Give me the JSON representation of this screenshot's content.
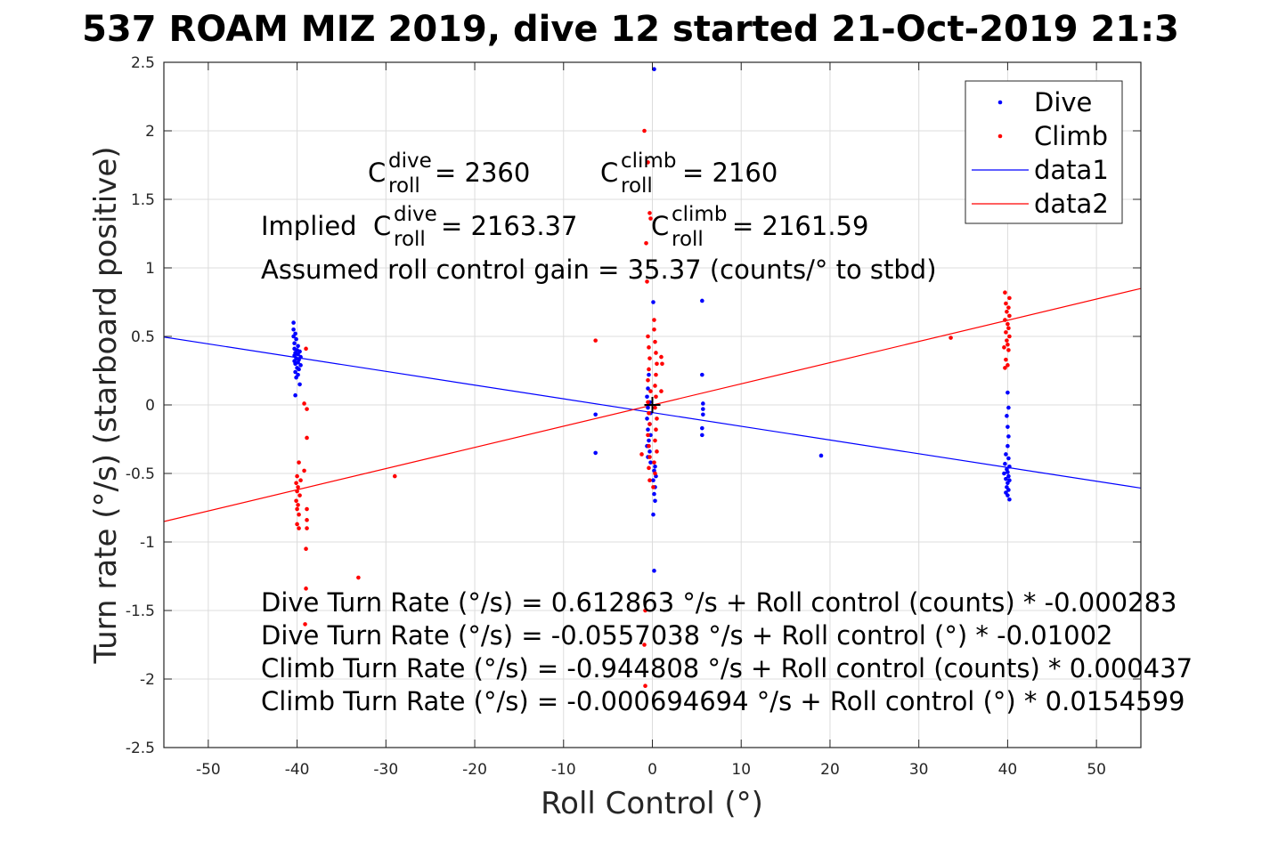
{
  "chart_data": {
    "type": "scatter",
    "title": "537 ROAM MIZ 2019, dive 12 started 21-Oct-2019 21:3",
    "xlabel": "Roll Control (°)",
    "ylabel": "Turn rate (°/s) (starboard positive)",
    "xlim": [
      -55,
      55
    ],
    "ylim": [
      -2.5,
      2.5
    ],
    "xticks": [
      -50,
      -40,
      -30,
      -20,
      -10,
      0,
      10,
      20,
      30,
      40,
      50
    ],
    "yticks": [
      -2.5,
      -2,
      -1.5,
      -1,
      -0.5,
      0,
      0.5,
      1,
      1.5,
      2,
      2.5
    ],
    "grid": true,
    "legend_position": "top-right",
    "colors": {
      "dive": "#0000ff",
      "climb": "#ff0000",
      "center_mark": "#000000"
    },
    "legend": [
      {
        "label": "Dive",
        "kind": "marker",
        "color": "#0000ff"
      },
      {
        "label": "Climb",
        "kind": "marker",
        "color": "#ff0000"
      },
      {
        "label": "data1",
        "kind": "line",
        "color": "#0000ff"
      },
      {
        "label": "data2",
        "kind": "line",
        "color": "#ff0000"
      }
    ],
    "lines": [
      {
        "name": "data1",
        "color": "#0000ff",
        "slope": -0.01002,
        "intercept": -0.0557038
      },
      {
        "name": "data2",
        "color": "#ff0000",
        "slope": 0.01545992,
        "intercept": -0.000694694
      }
    ],
    "center_mark": {
      "x": 0,
      "y": 0
    },
    "series": [
      {
        "name": "Dive",
        "color": "#0000ff",
        "points": [
          [
            -40.4,
            0.6
          ],
          [
            -40.4,
            0.55
          ],
          [
            -40.2,
            0.52
          ],
          [
            -40.4,
            0.5
          ],
          [
            -40.1,
            0.48
          ],
          [
            -40.3,
            0.45
          ],
          [
            -39.9,
            0.43
          ],
          [
            -40.3,
            0.41
          ],
          [
            -40.0,
            0.4
          ],
          [
            -39.7,
            0.39
          ],
          [
            -40.2,
            0.38
          ],
          [
            -39.9,
            0.37
          ],
          [
            -40.3,
            0.36
          ],
          [
            -39.6,
            0.35
          ],
          [
            -40.1,
            0.34
          ],
          [
            -39.8,
            0.33
          ],
          [
            -40.3,
            0.32
          ],
          [
            -39.9,
            0.31
          ],
          [
            -40.2,
            0.3
          ],
          [
            -39.6,
            0.29
          ],
          [
            -40.0,
            0.27
          ],
          [
            -39.8,
            0.26
          ],
          [
            -40.2,
            0.24
          ],
          [
            -39.9,
            0.22
          ],
          [
            -40.1,
            0.2
          ],
          [
            -39.7,
            0.15
          ],
          [
            -40.2,
            0.07
          ],
          [
            0.2,
            2.45
          ],
          [
            0.1,
            0.75
          ],
          [
            -0.4,
            0.22
          ],
          [
            -0.5,
            0.12
          ],
          [
            -0.6,
            0.06
          ],
          [
            -0.3,
            0.02
          ],
          [
            -0.5,
            -0.02
          ],
          [
            -0.2,
            -0.06
          ],
          [
            -0.6,
            -0.1
          ],
          [
            -0.3,
            -0.14
          ],
          [
            -0.5,
            -0.18
          ],
          [
            -0.2,
            -0.22
          ],
          [
            -0.4,
            -0.26
          ],
          [
            -0.6,
            -0.3
          ],
          [
            -0.3,
            -0.34
          ],
          [
            -0.5,
            -0.38
          ],
          [
            -0.2,
            -0.42
          ],
          [
            0.3,
            -0.45
          ],
          [
            0.2,
            -0.48
          ],
          [
            0.4,
            -0.52
          ],
          [
            0.1,
            -0.55
          ],
          [
            0.3,
            -0.6
          ],
          [
            0.2,
            -0.65
          ],
          [
            0.3,
            -0.7
          ],
          [
            0.1,
            -0.8
          ],
          [
            0.2,
            -1.21
          ],
          [
            -6.4,
            -0.07
          ],
          [
            -6.4,
            -0.35
          ],
          [
            5.6,
            0.76
          ],
          [
            5.6,
            0.22
          ],
          [
            5.7,
            0.01
          ],
          [
            5.7,
            -0.03
          ],
          [
            5.7,
            -0.07
          ],
          [
            5.6,
            -0.17
          ],
          [
            5.6,
            -0.22
          ],
          [
            19.0,
            -0.37
          ],
          [
            40.0,
            0.09
          ],
          [
            40.1,
            -0.02
          ],
          [
            39.9,
            -0.08
          ],
          [
            40.0,
            -0.16
          ],
          [
            40.1,
            -0.23
          ],
          [
            40.0,
            -0.3
          ],
          [
            39.8,
            -0.36
          ],
          [
            40.1,
            -0.39
          ],
          [
            39.7,
            -0.43
          ],
          [
            40.2,
            -0.45
          ],
          [
            39.9,
            -0.47
          ],
          [
            40.0,
            -0.49
          ],
          [
            39.6,
            -0.5
          ],
          [
            40.1,
            -0.52
          ],
          [
            39.8,
            -0.54
          ],
          [
            40.2,
            -0.55
          ],
          [
            40.0,
            -0.57
          ],
          [
            39.9,
            -0.6
          ],
          [
            40.1,
            -0.62
          ],
          [
            39.8,
            -0.64
          ],
          [
            40.0,
            -0.66
          ],
          [
            40.2,
            -0.69
          ]
        ]
      },
      {
        "name": "Climb",
        "color": "#ff0000",
        "points": [
          [
            -39.0,
            0.41
          ],
          [
            -39.2,
            0.01
          ],
          [
            -38.9,
            -0.03
          ],
          [
            -38.9,
            -0.24
          ],
          [
            -39.8,
            -0.42
          ],
          [
            -39.2,
            -0.48
          ],
          [
            -40.0,
            -0.52
          ],
          [
            -39.6,
            -0.55
          ],
          [
            -40.1,
            -0.57
          ],
          [
            -39.9,
            -0.6
          ],
          [
            -40.0,
            -0.63
          ],
          [
            -39.7,
            -0.66
          ],
          [
            -40.1,
            -0.7
          ],
          [
            -39.9,
            -0.73
          ],
          [
            -40.0,
            -0.76
          ],
          [
            -38.9,
            -0.76
          ],
          [
            -39.8,
            -0.8
          ],
          [
            -38.9,
            -0.84
          ],
          [
            -40.0,
            -0.87
          ],
          [
            -39.8,
            -0.9
          ],
          [
            -38.9,
            -0.9
          ],
          [
            -39.0,
            -1.05
          ],
          [
            -39.0,
            -1.34
          ],
          [
            -39.1,
            -1.6
          ],
          [
            -33.1,
            -1.26
          ],
          [
            -29.0,
            -0.52
          ],
          [
            -6.4,
            0.47
          ],
          [
            -0.9,
            2.0
          ],
          [
            -0.5,
            1.77
          ],
          [
            -0.3,
            1.4
          ],
          [
            -0.2,
            1.36
          ],
          [
            -0.7,
            1.18
          ],
          [
            -0.6,
            0.9
          ],
          [
            0.2,
            0.62
          ],
          [
            0.2,
            0.55
          ],
          [
            -0.5,
            0.5
          ],
          [
            0.3,
            0.46
          ],
          [
            -0.4,
            0.42
          ],
          [
            0.4,
            0.38
          ],
          [
            -0.3,
            0.34
          ],
          [
            0.5,
            0.3
          ],
          [
            -0.4,
            0.26
          ],
          [
            0.4,
            0.22
          ],
          [
            -0.5,
            0.18
          ],
          [
            0.3,
            0.14
          ],
          [
            -0.2,
            0.1
          ],
          [
            0.4,
            0.06
          ],
          [
            -0.5,
            0.02
          ],
          [
            0.3,
            -0.02
          ],
          [
            -0.4,
            -0.06
          ],
          [
            0.5,
            -0.1
          ],
          [
            -0.3,
            -0.14
          ],
          [
            0.4,
            -0.18
          ],
          [
            -0.5,
            -0.22
          ],
          [
            0.3,
            -0.26
          ],
          [
            -0.4,
            -0.3
          ],
          [
            0.5,
            -0.34
          ],
          [
            -0.3,
            -0.38
          ],
          [
            0.2,
            -0.42
          ],
          [
            -0.4,
            -0.46
          ],
          [
            0.3,
            -0.5
          ],
          [
            -0.3,
            -0.55
          ],
          [
            0.1,
            -0.6
          ],
          [
            1.0,
            0.35
          ],
          [
            1.1,
            0.3
          ],
          [
            1.0,
            0.1
          ],
          [
            -1.2,
            -0.36
          ],
          [
            -0.8,
            -1.5
          ],
          [
            -0.9,
            -1.75
          ],
          [
            -0.8,
            -2.05
          ],
          [
            33.6,
            0.49
          ],
          [
            39.7,
            0.82
          ],
          [
            40.2,
            0.78
          ],
          [
            39.8,
            0.74
          ],
          [
            40.1,
            0.71
          ],
          [
            39.9,
            0.68
          ],
          [
            40.2,
            0.65
          ],
          [
            39.7,
            0.62
          ],
          [
            40.0,
            0.59
          ],
          [
            40.1,
            0.56
          ],
          [
            39.8,
            0.53
          ],
          [
            40.2,
            0.5
          ],
          [
            39.9,
            0.47
          ],
          [
            40.0,
            0.44
          ],
          [
            39.6,
            0.42
          ],
          [
            40.1,
            0.4
          ],
          [
            39.8,
            0.33
          ],
          [
            40.0,
            0.29
          ],
          [
            39.7,
            0.27
          ]
        ]
      }
    ],
    "annotations": [
      {
        "id": "c_dive",
        "base": "C",
        "sup": "dive",
        "sub": "roll",
        "rest": " = 2360"
      },
      {
        "id": "c_climb",
        "base": "C",
        "sup": "climb",
        "sub": "roll",
        "rest": " = 2160"
      },
      {
        "id": "implied_dive",
        "prefix": "Implied ",
        "base": "C",
        "sup": "dive",
        "sub": "roll",
        "rest": " = 2163.37"
      },
      {
        "id": "implied_climb",
        "base": "C",
        "sup": "climb",
        "sub": "roll",
        "rest": " = 2161.59"
      },
      {
        "id": "gain",
        "text": "Assumed roll control gain = 35.37 (counts/° to stbd)"
      },
      {
        "id": "fit1",
        "text": "Dive Turn Rate (°/s) = 0.612863 °/s + Roll control (counts) * -0.000283"
      },
      {
        "id": "fit2",
        "text": "Dive Turn Rate (°/s) = -0.0557038 °/s + Roll control (°) * -0.01002"
      },
      {
        "id": "fit3",
        "text": "Climb Turn Rate (°/s) = -0.944808 °/s + Roll control (counts) * 0.000437"
      },
      {
        "id": "fit4",
        "text": "Climb Turn Rate (°/s) = -0.000694694 °/s + Roll control (°) * 0.0154599"
      }
    ]
  }
}
